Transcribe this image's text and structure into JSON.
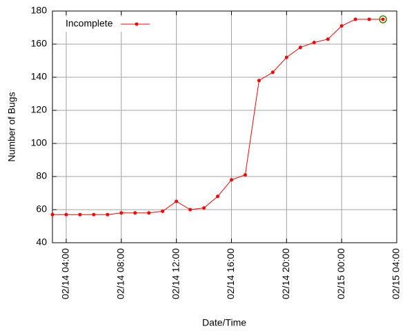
{
  "chart_data": {
    "type": "line",
    "x_label": "Date/Time",
    "y_label": "Number of Bugs",
    "x": [
      "02/14 03:00",
      "02/14 04:00",
      "02/14 05:00",
      "02/14 06:00",
      "02/14 07:00",
      "02/14 08:00",
      "02/14 09:00",
      "02/14 10:00",
      "02/14 11:00",
      "02/14 12:00",
      "02/14 13:00",
      "02/14 14:00",
      "02/14 15:00",
      "02/14 16:00",
      "02/14 17:00",
      "02/14 18:00",
      "02/14 19:00",
      "02/14 20:00",
      "02/14 21:00",
      "02/14 22:00",
      "02/14 23:00",
      "02/15 00:00",
      "02/15 01:00",
      "02/15 02:00",
      "02/15 03:00"
    ],
    "series": [
      {
        "name": "Incomplete",
        "color": "#ff0000",
        "values": [
          57,
          57,
          57,
          57,
          57,
          58,
          58,
          58,
          59,
          65,
          60,
          61,
          68,
          78,
          81,
          138,
          143,
          152,
          158,
          161,
          163,
          171,
          175,
          175,
          175
        ]
      }
    ],
    "xlim": [
      "02/14 03:00",
      "02/15 04:00"
    ],
    "xticks": [
      "02/14 04:00",
      "02/14 08:00",
      "02/14 12:00",
      "02/14 16:00",
      "02/14 20:00",
      "02/15 00:00",
      "02/15 04:00"
    ],
    "ylim": [
      40,
      180
    ],
    "yticks": [
      40,
      60,
      80,
      100,
      120,
      140,
      160,
      180
    ],
    "grid": true,
    "legend": "upper left"
  }
}
